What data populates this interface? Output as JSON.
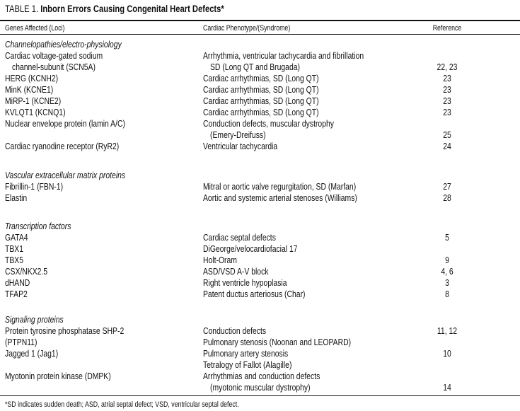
{
  "title": {
    "label": "TABLE 1.",
    "text": "Inborn Errors Causing Congenital Heart Defects*"
  },
  "columns": [
    "Genes Affected (Loci)",
    "Cardiac Phenotype/(Syndrome)",
    "Reference"
  ],
  "sections": [
    {
      "title": "Channelopathies/electro-physiology",
      "lines": [
        {
          "gene": "Cardiac voltage-gated sodium",
          "phenotype": "Arrhythmia, ventricular tachycardia and fibrillation",
          "ref": ""
        },
        {
          "gene": "channel-subunit (SCN5A)",
          "gene_indent": true,
          "phenotype": "SD (Long QT and Brugada)",
          "phenotype_indent": true,
          "ref": "22, 23"
        },
        {
          "gene": "HERG (KCNH2)",
          "phenotype": "Cardiac arrhythmias, SD (Long QT)",
          "ref": "23"
        },
        {
          "gene": "MinK (KCNE1)",
          "phenotype": "Cardiac arrhythmias, SD (Long QT)",
          "ref": "23"
        },
        {
          "gene": "MiRP-1 (KCNE2)",
          "phenotype": "Cardiac arrhythmias, SD (Long QT)",
          "ref": "23"
        },
        {
          "gene": "KVLQT1 (KCNQ1)",
          "phenotype": "Cardiac arrhythmias, SD (Long QT)",
          "ref": "23"
        },
        {
          "gene": "Nuclear envelope protein (lamin A/C)",
          "phenotype": "Conduction defects, muscular dystrophy",
          "ref": ""
        },
        {
          "gene": "",
          "phenotype": "(Emery-Dreifuss)",
          "phenotype_indent": true,
          "ref": "25"
        },
        {
          "gene": "Cardiac ryanodine receptor (RyR2)",
          "phenotype": "Ventricular tachycardia",
          "ref": "24"
        }
      ]
    },
    {
      "title": "Vascular extracellular matrix proteins",
      "lines": [
        {
          "gene": "Fibrillin-1 (FBN-1)",
          "phenotype": "Mitral or aortic valve regurgitation, SD (Marfan)",
          "ref": "27"
        },
        {
          "gene": "Elastin",
          "phenotype": "Aortic and systemic arterial stenoses (Williams)",
          "ref": "28"
        }
      ]
    },
    {
      "title": "Transcription factors",
      "lines": [
        {
          "gene": "GATA4",
          "phenotype": "Cardiac septal defects",
          "ref": "5"
        },
        {
          "gene": "TBX1",
          "phenotype": "DiGeorge/velocardiofacial 17",
          "ref": ""
        },
        {
          "gene": "TBX5",
          "phenotype": "Holt-Oram",
          "ref": "9"
        },
        {
          "gene": "CSX/NKX2.5",
          "phenotype": "ASD/VSD A-V block",
          "ref": "4, 6"
        },
        {
          "gene": "dHAND",
          "phenotype": "Right ventricle hypoplasia",
          "ref": "3"
        },
        {
          "gene": "TFAP2",
          "phenotype": "Patent ductus arteriosus (Char)",
          "ref": "8"
        }
      ]
    },
    {
      "title": "Signaling proteins",
      "lines": [
        {
          "gene": "Protein tyrosine phosphatase SHP-2",
          "phenotype": "Conduction defects",
          "ref": "11, 12"
        },
        {
          "gene": "(PTPN11)",
          "phenotype": "Pulmonary stenosis (Noonan and LEOPARD)",
          "ref": ""
        },
        {
          "gene": "Jagged 1 (Jag1)",
          "phenotype": "Pulmonary artery stenosis",
          "ref": "10"
        },
        {
          "gene": "",
          "phenotype": "Tetralogy of Fallot (Alagille)",
          "ref": ""
        },
        {
          "gene": "Myotonin protein kinase (DMPK)",
          "phenotype": "Arrhythmias and conduction defects",
          "ref": ""
        },
        {
          "gene": "",
          "phenotype": "(myotonic muscular dystrophy)",
          "phenotype_indent": true,
          "ref": "14"
        }
      ]
    }
  ],
  "footnote": "*SD indicates sudden death; ASD, atrial septal defect; VSD, ventricular septal defect."
}
